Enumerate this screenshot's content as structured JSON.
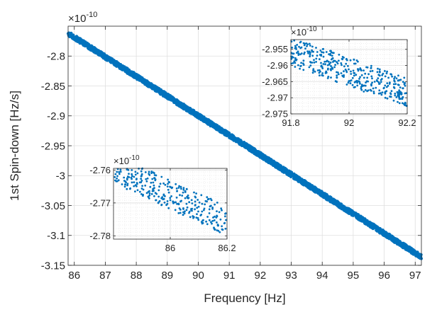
{
  "chart_data": [
    {
      "type": "scatter",
      "id": "main",
      "xlabel": "Frequency [Hz]",
      "ylabel": "1st Spin-down [Hz/s]",
      "exponent_label": "×10",
      "exponent_power": "-10",
      "xlim": [
        85.8,
        97.2
      ],
      "ylim": [
        -3.15,
        -2.75
      ],
      "xticks": [
        86,
        87,
        88,
        89,
        90,
        91,
        92,
        93,
        94,
        95,
        96,
        97
      ],
      "yticks": [
        -3.15,
        -3.1,
        -3.05,
        -3.0,
        -2.95,
        -2.9,
        -2.85,
        -2.8
      ],
      "ytick_labels": [
        "-3.15",
        "-3.1",
        "-3.05",
        "-3",
        "-2.95",
        "-2.9",
        "-2.85",
        "-2.8"
      ],
      "grid": true,
      "marker_color": "#0072BD",
      "band": {
        "x_start": 85.8,
        "y_start": -2.762,
        "x_end": 97.2,
        "y_end": -3.136,
        "half_width": 0.004
      }
    },
    {
      "type": "scatter",
      "id": "inset-upper",
      "exponent_label": "×10",
      "exponent_power": "-10",
      "xlim": [
        91.8,
        92.2
      ],
      "ylim": [
        -2.975,
        -2.952
      ],
      "xticks": [
        91.8,
        92,
        92.2
      ],
      "xtick_labels": [
        "91.8",
        "92",
        "92.2"
      ],
      "yticks": [
        -2.975,
        -2.97,
        -2.965,
        -2.96,
        -2.955
      ],
      "ytick_labels": [
        "-2.975",
        "-2.97",
        "-2.965",
        "-2.96",
        "-2.955"
      ],
      "grid": true,
      "minor_grid": true,
      "marker_color": "#0072BD",
      "band": {
        "x_start": 91.8,
        "y_start": -2.9555,
        "x_end": 92.2,
        "y_end": -2.9685,
        "half_width": 0.0045
      }
    },
    {
      "type": "scatter",
      "id": "inset-lower",
      "exponent_label": "×10",
      "exponent_power": "-10",
      "xlim": [
        85.8,
        86.2
      ],
      "ylim": [
        -2.781,
        -2.7595
      ],
      "xticks": [
        86,
        86.2
      ],
      "xtick_labels": [
        "86",
        "86.2"
      ],
      "yticks": [
        -2.78,
        -2.77,
        -2.76
      ],
      "ytick_labels": [
        "-2.78",
        "-2.77",
        "-2.76"
      ],
      "grid": true,
      "minor_grid": true,
      "marker_color": "#0072BD",
      "band": {
        "x_start": 85.8,
        "y_start": -2.7595,
        "x_end": 86.2,
        "y_end": -2.7755,
        "half_width": 0.0045
      }
    }
  ]
}
